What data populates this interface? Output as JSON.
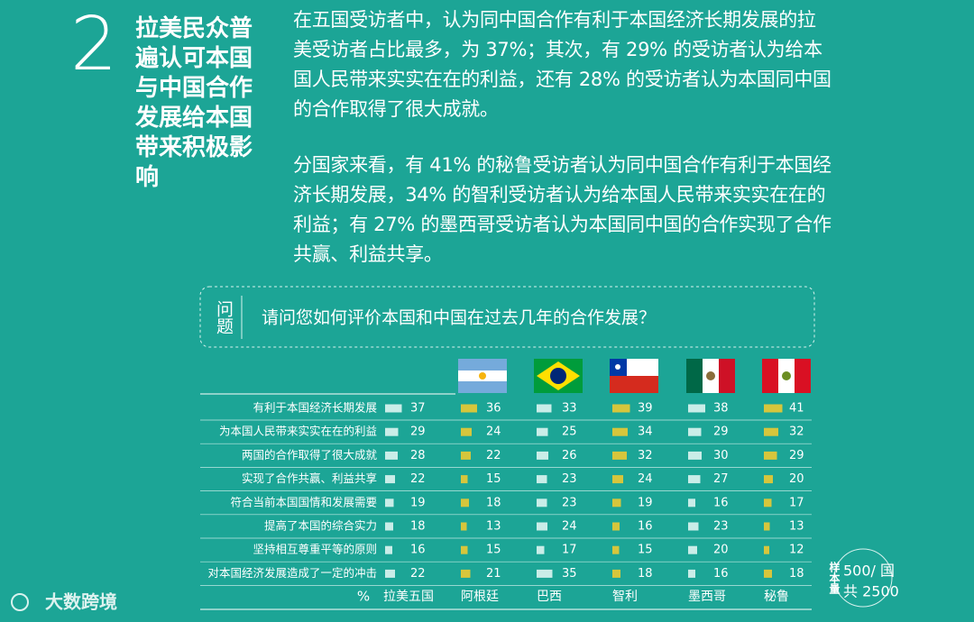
{
  "heading": {
    "number": "2",
    "title": "拉美民众普遍认可本国与中国合作发展给本国带来积极影响"
  },
  "paragraphs": [
    "在五国受访者中，认为同中国合作有利于本国经济长期发展的拉美受访者占比最多，为 37%；其次，有 29% 的受访者认为给本国人民带来实实在在的利益，还有 28% 的受访者认为本国同中国的合作取得了很大成就。",
    "分国家来看，有 41% 的秘鲁受访者认为同中国合作有利于本国经济长期发展，34% 的智利受访者认为给本国人民带来实实在在的利益；有 27% 的墨西哥受访者认为本国同中国的合作实现了合作共赢、利益共享。"
  ],
  "question": {
    "label": "问题",
    "text": "请问您如何评价本国和中国在过去几年的合作发展？"
  },
  "sample": {
    "label": "样本量",
    "per_country": "500/ 国",
    "total": "共 2500"
  },
  "logo": "大数跨境",
  "chart_data": {
    "type": "bar",
    "unit": "%",
    "categories": [
      "有利于本国经济长期发展",
      "为本国人民带来实实在在的利益",
      "两国的合作取得了很大成就",
      "实现了合作共赢、利益共享",
      "符合当前本国国情和发展需要",
      "提高了本国的综合实力",
      "坚持相互尊重平等的原则",
      "对本国经济发展造成了一定的冲击"
    ],
    "series": [
      {
        "name": "拉美五国",
        "color": "#c9ede8",
        "values": [
          37,
          29,
          28,
          22,
          19,
          18,
          16,
          22
        ]
      },
      {
        "name": "阿根廷",
        "color": "#d6c63c",
        "values": [
          36,
          24,
          22,
          15,
          18,
          13,
          15,
          21
        ]
      },
      {
        "name": "巴西",
        "color": "#c9ede8",
        "values": [
          33,
          25,
          26,
          23,
          23,
          24,
          17,
          35
        ]
      },
      {
        "name": "智利",
        "color": "#d6c63c",
        "values": [
          39,
          34,
          32,
          24,
          19,
          16,
          15,
          18
        ]
      },
      {
        "name": "墨西哥",
        "color": "#c9ede8",
        "values": [
          38,
          29,
          30,
          27,
          16,
          23,
          20,
          16
        ]
      },
      {
        "name": "秘鲁",
        "color": "#d6c63c",
        "values": [
          41,
          32,
          29,
          20,
          17,
          13,
          12,
          18
        ]
      }
    ]
  }
}
